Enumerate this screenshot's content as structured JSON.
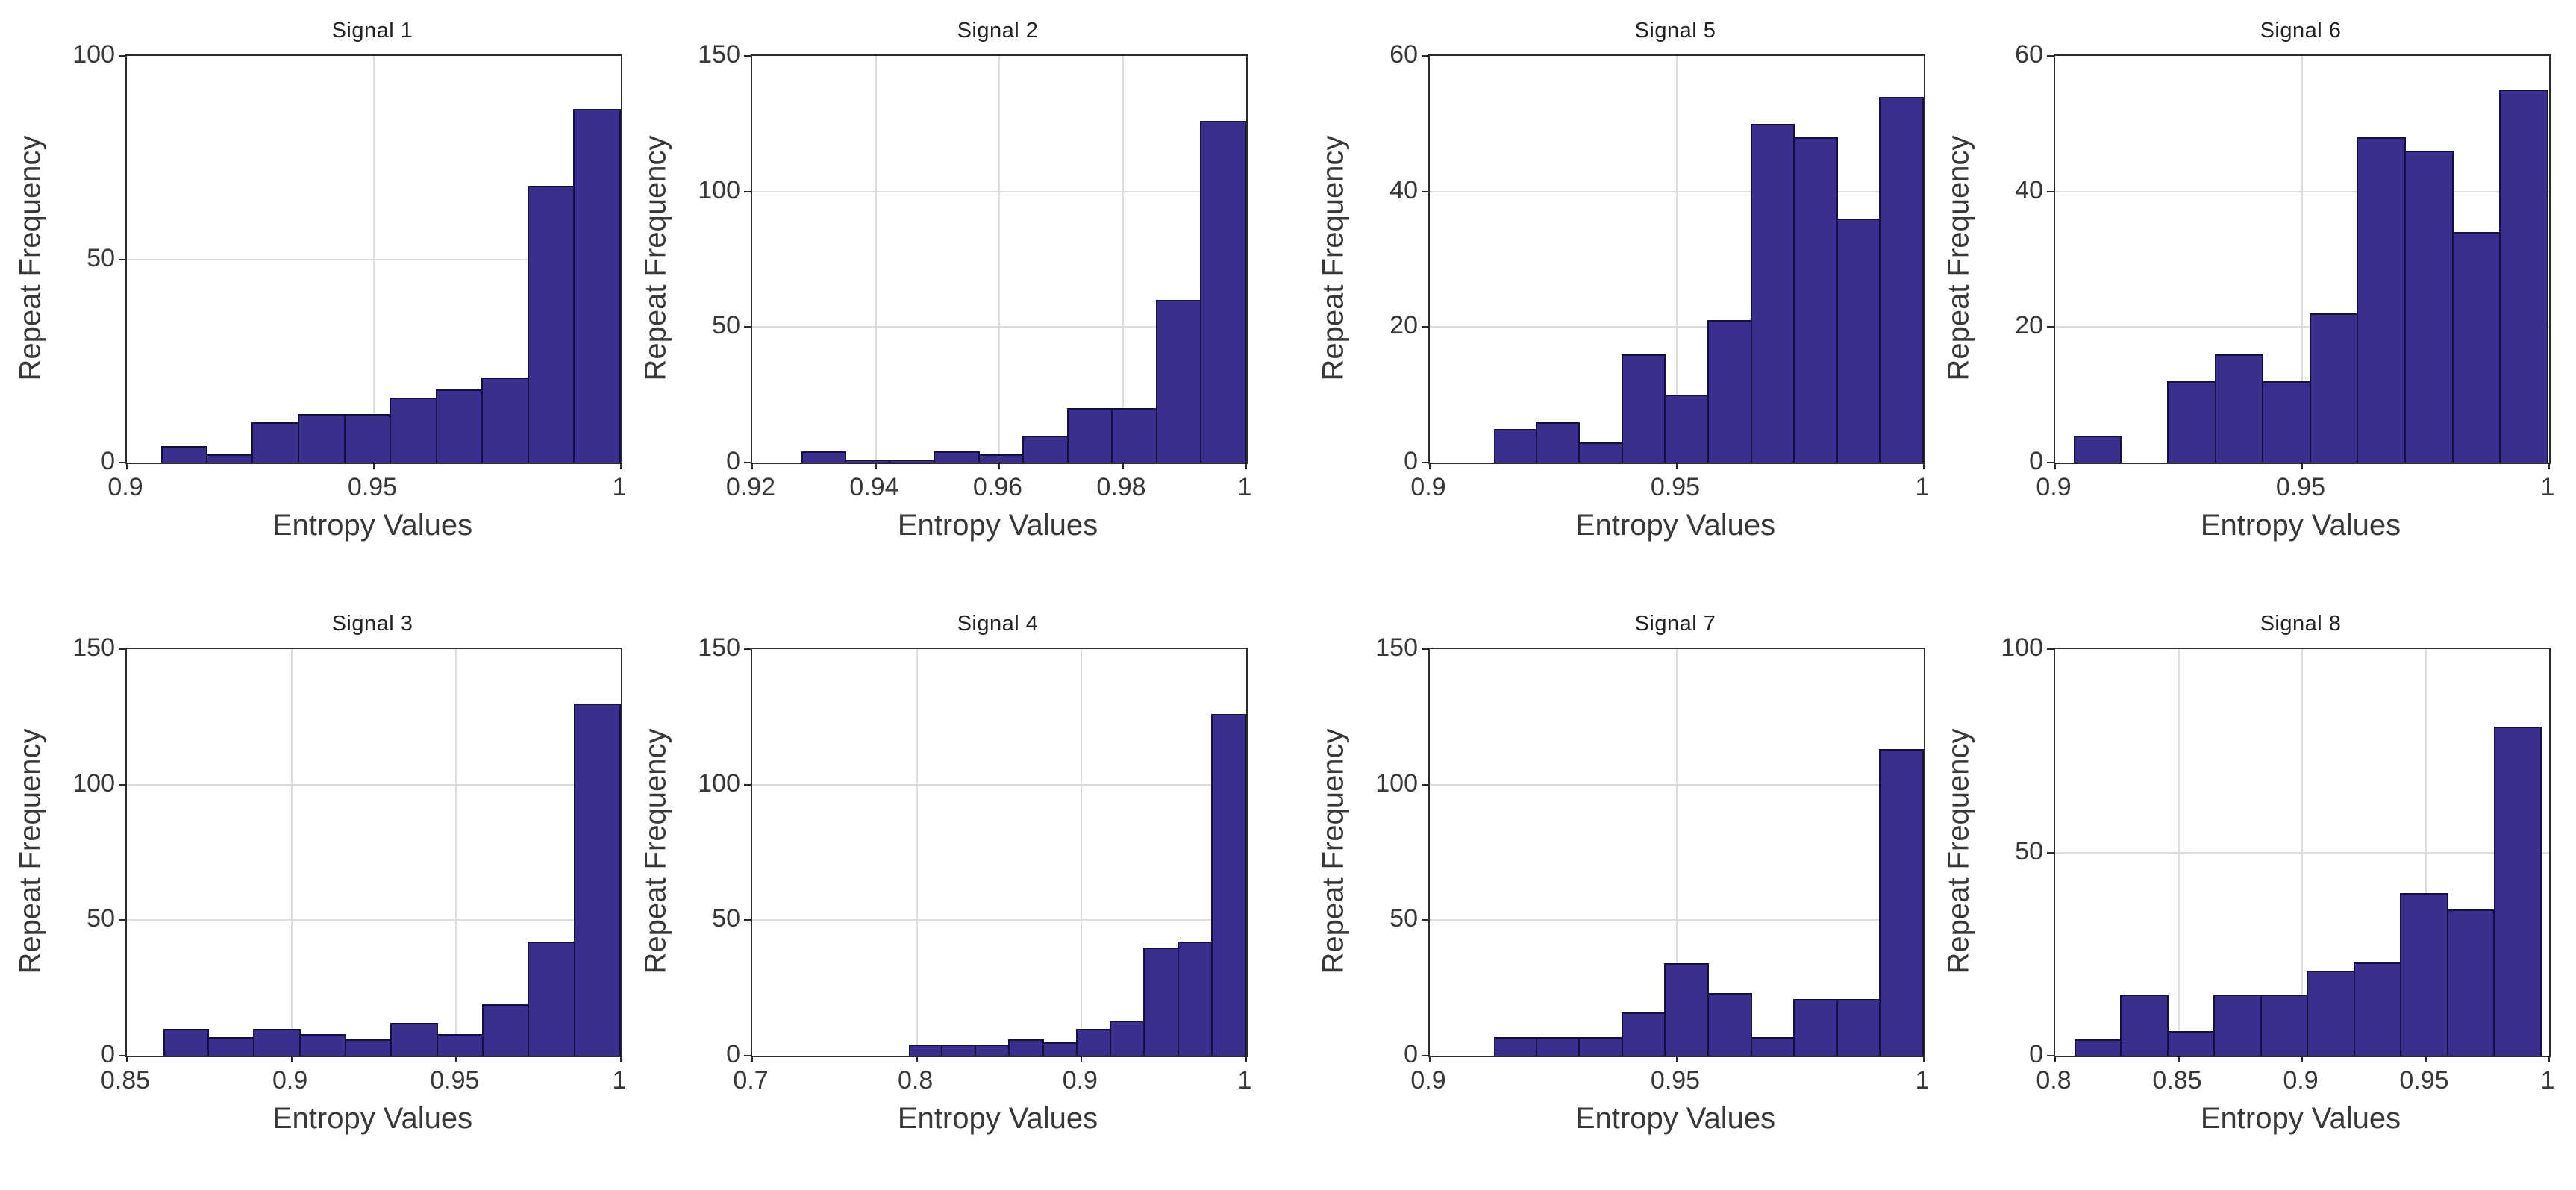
{
  "figure": {
    "xlabel": "Entropy Values",
    "ylabel": "Repeat Frequency",
    "colors": {
      "bar_fill": "#3a2f8f",
      "bar_edge": "#14123d",
      "grid": "#dcdcdc",
      "axis_box": "#2b2b2b",
      "text": "#383838",
      "title_text": "#222222",
      "background": "#ffffff"
    }
  },
  "chart_data": [
    {
      "type": "bar",
      "subtype": "histogram",
      "title": "Signal 1",
      "xlabel": "Entropy Values",
      "ylabel": "Repeat Frequency",
      "xlim": [
        0.9,
        1
      ],
      "xticks": [
        0.9,
        0.95,
        1
      ],
      "ylim": [
        0,
        100
      ],
      "yticks": [
        0,
        50,
        100
      ],
      "grid": true,
      "bin_start": 0.907,
      "bin_width": 0.0093,
      "counts": [
        4,
        2,
        10,
        12,
        12,
        16,
        18,
        21,
        68,
        87
      ],
      "position": {
        "row": 1,
        "col": 1
      }
    },
    {
      "type": "bar",
      "subtype": "histogram",
      "title": "Signal 2",
      "xlabel": "Entropy Values",
      "ylabel": "Repeat Frequency",
      "xlim": [
        0.92,
        1
      ],
      "xticks": [
        0.92,
        0.94,
        0.96,
        0.98,
        1
      ],
      "ylim": [
        0,
        150
      ],
      "yticks": [
        0,
        50,
        100,
        150
      ],
      "grid": true,
      "bin_start": 0.928,
      "bin_width": 0.0072,
      "counts": [
        4,
        1,
        1,
        4,
        3,
        10,
        20,
        20,
        60,
        126
      ],
      "position": {
        "row": 1,
        "col": 2
      }
    },
    {
      "type": "bar",
      "subtype": "histogram",
      "title": "Signal 5",
      "xlabel": "Entropy Values",
      "ylabel": "Repeat Frequency",
      "xlim": [
        0.9,
        1
      ],
      "xticks": [
        0.9,
        0.95,
        1
      ],
      "ylim": [
        0,
        60
      ],
      "yticks": [
        0,
        20,
        40,
        60
      ],
      "grid": true,
      "bin_start": 0.913,
      "bin_width": 0.0087,
      "counts": [
        5,
        6,
        3,
        16,
        10,
        21,
        50,
        48,
        36,
        54
      ],
      "position": {
        "row": 1,
        "col": 3
      }
    },
    {
      "type": "bar",
      "subtype": "histogram",
      "title": "Signal 6",
      "xlabel": "Entropy Values",
      "ylabel": "Repeat Frequency",
      "xlim": [
        0.9,
        1
      ],
      "xticks": [
        0.9,
        0.95,
        1
      ],
      "ylim": [
        0,
        60
      ],
      "yticks": [
        0,
        20,
        40,
        60
      ],
      "grid": true,
      "bin_start": 0.9038,
      "bin_width": 0.0096,
      "counts": [
        4,
        0,
        12,
        16,
        12,
        22,
        48,
        46,
        34,
        55
      ],
      "position": {
        "row": 1,
        "col": 4
      }
    },
    {
      "type": "bar",
      "subtype": "histogram",
      "title": "Signal 3",
      "xlabel": "Entropy Values",
      "ylabel": "Repeat Frequency",
      "xlim": [
        0.85,
        1
      ],
      "xticks": [
        0.85,
        0.9,
        0.95,
        1
      ],
      "ylim": [
        0,
        150
      ],
      "yticks": [
        0,
        50,
        100,
        150
      ],
      "grid": true,
      "bin_start": 0.861,
      "bin_width": 0.0139,
      "counts": [
        10,
        7,
        10,
        8,
        6,
        12,
        8,
        19,
        42,
        130
      ],
      "position": {
        "row": 2,
        "col": 1
      }
    },
    {
      "type": "bar",
      "subtype": "histogram",
      "title": "Signal 4",
      "xlabel": "Entropy Values",
      "ylabel": "Repeat Frequency",
      "xlim": [
        0.7,
        1
      ],
      "xticks": [
        0.7,
        0.8,
        0.9,
        1
      ],
      "ylim": [
        0,
        150
      ],
      "yticks": [
        0,
        50,
        100,
        150
      ],
      "grid": true,
      "bin_start": 0.795,
      "bin_width": 0.0205,
      "counts": [
        4,
        4,
        4,
        6,
        5,
        10,
        13,
        40,
        42,
        126
      ],
      "position": {
        "row": 2,
        "col": 2
      }
    },
    {
      "type": "bar",
      "subtype": "histogram",
      "title": "Signal 7",
      "xlabel": "Entropy Values",
      "ylabel": "Repeat Frequency",
      "xlim": [
        0.9,
        1
      ],
      "xticks": [
        0.9,
        0.95,
        1
      ],
      "ylim": [
        0,
        150
      ],
      "yticks": [
        0,
        50,
        100,
        150
      ],
      "grid": true,
      "bin_start": 0.913,
      "bin_width": 0.0087,
      "counts": [
        7,
        7,
        7,
        16,
        34,
        23,
        7,
        21,
        21,
        113
      ],
      "position": {
        "row": 2,
        "col": 3
      }
    },
    {
      "type": "bar",
      "subtype": "histogram",
      "title": "Signal 8",
      "xlabel": "Entropy Values",
      "ylabel": "Repeat Frequency",
      "xlim": [
        0.8,
        1
      ],
      "xticks": [
        0.8,
        0.85,
        0.9,
        0.95,
        1
      ],
      "ylim": [
        0,
        100
      ],
      "yticks": [
        0,
        50,
        100
      ],
      "grid": true,
      "bin_start": 0.808,
      "bin_width": 0.0189,
      "counts": [
        4,
        15,
        6,
        15,
        15,
        21,
        23,
        40,
        36,
        81
      ],
      "position": {
        "row": 2,
        "col": 4
      }
    }
  ]
}
